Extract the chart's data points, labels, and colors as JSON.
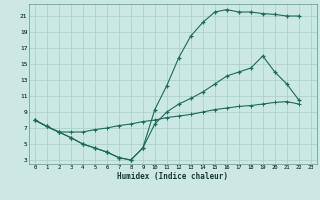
{
  "xlabel": "Humidex (Indice chaleur)",
  "bg_color": "#cce8e5",
  "grid_color": "#aaccca",
  "line_color": "#1a6b5a",
  "xlim": [
    -0.5,
    23.5
  ],
  "ylim": [
    2.5,
    22.5
  ],
  "yticks": [
    3,
    5,
    7,
    9,
    11,
    13,
    15,
    17,
    19,
    21
  ],
  "xticks": [
    0,
    1,
    2,
    3,
    4,
    5,
    6,
    7,
    8,
    9,
    10,
    11,
    12,
    13,
    14,
    15,
    16,
    17,
    18,
    19,
    20,
    21,
    22,
    23
  ],
  "line1_x": [
    0,
    1,
    2,
    3,
    4,
    5,
    6,
    7,
    8,
    9,
    10,
    11,
    12,
    13,
    14,
    15,
    16,
    17,
    18,
    19,
    20,
    21,
    22
  ],
  "line1_y": [
    8.0,
    7.2,
    6.5,
    5.8,
    5.0,
    4.5,
    4.0,
    3.3,
    3.0,
    4.5,
    9.3,
    12.3,
    15.8,
    18.5,
    20.2,
    21.5,
    21.8,
    21.5,
    21.5,
    21.3,
    21.2,
    21.0,
    21.0
  ],
  "line2_x": [
    0,
    1,
    2,
    3,
    4,
    5,
    6,
    7,
    8,
    9,
    10,
    11,
    12,
    13,
    14,
    15,
    16,
    17,
    18,
    19,
    20,
    21,
    22
  ],
  "line2_y": [
    8.0,
    7.2,
    6.5,
    5.8,
    5.0,
    4.5,
    4.0,
    3.3,
    3.0,
    4.5,
    7.5,
    9.0,
    10.0,
    10.7,
    11.5,
    12.5,
    13.5,
    14.0,
    14.5,
    16.0,
    14.0,
    12.5,
    10.5
  ],
  "line3_x": [
    0,
    1,
    2,
    3,
    4,
    5,
    6,
    7,
    8,
    9,
    10,
    11,
    12,
    13,
    14,
    15,
    16,
    17,
    18,
    19,
    20,
    21,
    22
  ],
  "line3_y": [
    8.0,
    7.2,
    6.5,
    6.5,
    6.5,
    6.8,
    7.0,
    7.3,
    7.5,
    7.8,
    8.0,
    8.3,
    8.5,
    8.7,
    9.0,
    9.3,
    9.5,
    9.7,
    9.8,
    10.0,
    10.2,
    10.3,
    10.0
  ]
}
